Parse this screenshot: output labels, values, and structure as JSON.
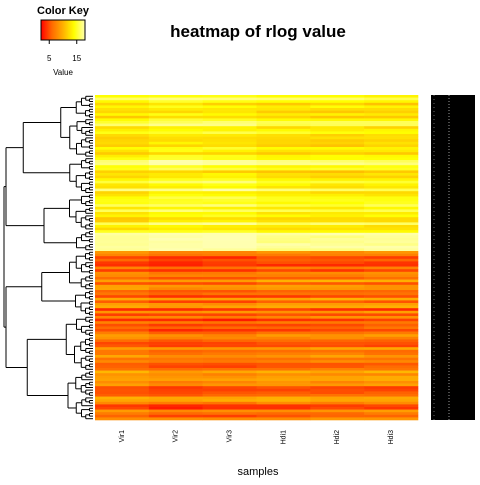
{
  "chart_data": {
    "type": "heatmap",
    "title": "heatmap of rlog value",
    "xlabel": "samples",
    "columns": [
      "Vir1",
      "Vir2",
      "Vir3",
      "Hdi1",
      "Hdi2",
      "Hdi3"
    ],
    "color_key": {
      "title": "Color Key",
      "label": "Value",
      "ticks": [
        5,
        15
      ],
      "range": [
        2,
        18
      ],
      "colors": [
        "#ff0000",
        "#ff6a00",
        "#ffb000",
        "#ffff00",
        "#ffffb0"
      ]
    },
    "row_clusters": [
      {
        "rows": 60,
        "value_range": [
          11,
          17
        ]
      },
      {
        "rows": 65,
        "value_range": [
          4,
          10
        ]
      }
    ],
    "row_dendrogram": true,
    "row_labels_visible": true
  }
}
